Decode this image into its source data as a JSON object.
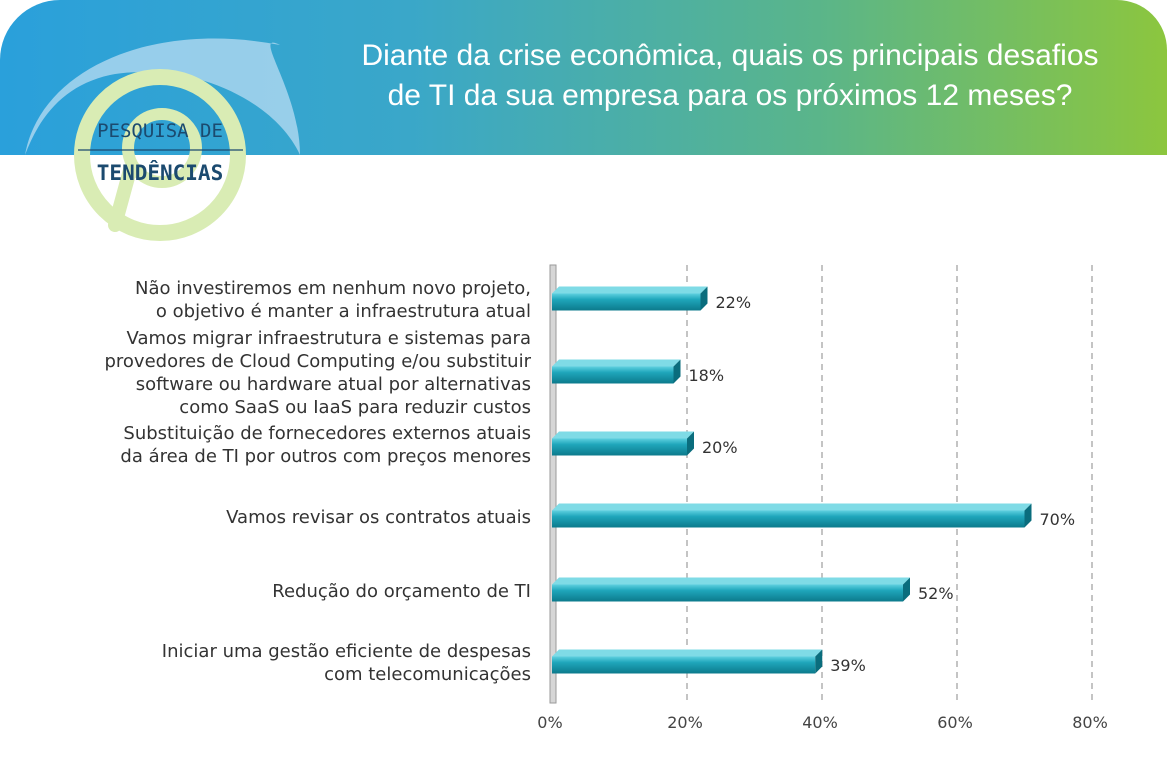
{
  "header": {
    "title_lines": [
      "Diante da crise econômica, quais os principais desafios",
      "de TI da sua empresa para os próximos 12 meses?"
    ]
  },
  "logo": {
    "line1": "PESQUISA DE",
    "line2": "TENDÊNCIAS"
  },
  "colors": {
    "bar": "#1fa0b4",
    "bar_dark": "#0c7a8c",
    "header_start": "#2aa0db",
    "header_end": "#8cc63e",
    "logo_text": "#1b4a6f"
  },
  "chart_data": {
    "type": "bar",
    "orientation": "horizontal",
    "categories": [
      [
        "Não investiremos em nenhum novo projeto,",
        "o objetivo é manter a infraestrutura atual"
      ],
      [
        "Vamos migrar infraestrutura e sistemas para",
        "provedores de Cloud Computing e/ou substituir",
        "software ou hardware atual por alternativas",
        "como SaaS ou IaaS para reduzir custos"
      ],
      [
        "Substituição de fornecedores externos atuais",
        "da área de TI por outros com preços menores"
      ],
      [
        "Vamos revisar os contratos atuais"
      ],
      [
        "Redução do orçamento de TI"
      ],
      [
        "Iniciar uma gestão eficiente de despesas",
        "com telecomunicações"
      ]
    ],
    "values": [
      22,
      18,
      20,
      70,
      52,
      39
    ],
    "value_labels": [
      "22%",
      "18%",
      "20%",
      "70%",
      "52%",
      "39%"
    ],
    "xlim": [
      0,
      80
    ],
    "ticks": [
      0,
      20,
      40,
      60,
      80
    ],
    "tick_labels": [
      "0%",
      "20%",
      "40%",
      "60%",
      "80%"
    ],
    "grid": "vertical dashed"
  }
}
